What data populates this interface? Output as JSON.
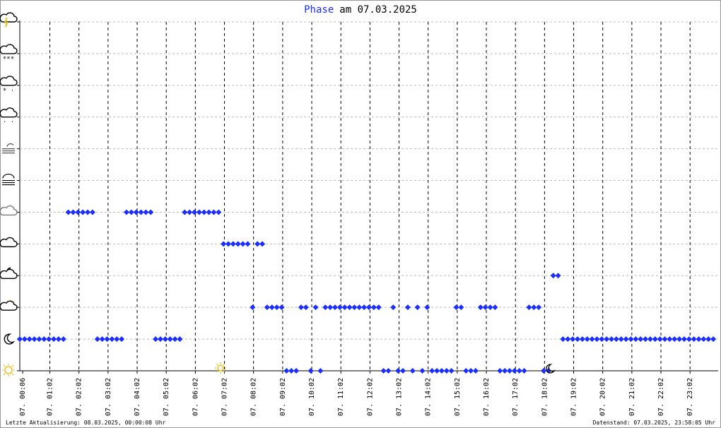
{
  "chart_data": {
    "type": "scatter",
    "title": "am 07.03.2025",
    "series": [
      {
        "name": "Phase",
        "color": "#1a2eff",
        "values": [
          1,
          1,
          1,
          1,
          1,
          1,
          1,
          1,
          1,
          1,
          5,
          5,
          5,
          5,
          5,
          5,
          1,
          1,
          1,
          1,
          1,
          1,
          5,
          5,
          5,
          5,
          5,
          5,
          1,
          1,
          1,
          1,
          1,
          1,
          5,
          5,
          5,
          5,
          5,
          5,
          5,
          5,
          4,
          4,
          4,
          4,
          4,
          4,
          2,
          4,
          4,
          2,
          2,
          2,
          2,
          0,
          0,
          0,
          2,
          2,
          0,
          2,
          0,
          2,
          2,
          2,
          2,
          2,
          2,
          2,
          2,
          2,
          2,
          2,
          2,
          0,
          0,
          2,
          0,
          0,
          2,
          0,
          2,
          0,
          2,
          0,
          0,
          0,
          0,
          0,
          2,
          2,
          0,
          0,
          0,
          2,
          2,
          2,
          2,
          0,
          0,
          0,
          0,
          0,
          0,
          2,
          2,
          2,
          0,
          0,
          3,
          3,
          1,
          1,
          1,
          1,
          1,
          1,
          1,
          1,
          1,
          1,
          1,
          1,
          1,
          1,
          1,
          1,
          1,
          1,
          1,
          1,
          1,
          1,
          1,
          1,
          1,
          1,
          1,
          1,
          1,
          1,
          1,
          1
        ]
      }
    ],
    "x": [
      "00:00",
      "00:10",
      "00:20",
      "00:30",
      "00:40",
      "00:50",
      "01:00",
      "01:10",
      "01:20",
      "01:30",
      "01:40",
      "01:50",
      "02:00",
      "02:10",
      "02:20",
      "02:30",
      "02:40",
      "02:50",
      "03:00",
      "03:10",
      "03:20",
      "03:30",
      "03:40",
      "03:50",
      "04:00",
      "04:10",
      "04:20",
      "04:30",
      "04:40",
      "04:50",
      "05:00",
      "05:10",
      "05:20",
      "05:30",
      "05:40",
      "05:50",
      "06:00",
      "06:10",
      "06:20",
      "06:30",
      "06:40",
      "06:50",
      "07:00",
      "07:10",
      "07:20",
      "07:30",
      "07:40",
      "07:50",
      "08:00",
      "08:10",
      "08:20",
      "08:30",
      "08:40",
      "08:50",
      "09:00",
      "09:10",
      "09:20",
      "09:30",
      "09:40",
      "09:50",
      "10:00",
      "10:10",
      "10:20",
      "10:30",
      "10:40",
      "10:50",
      "11:00",
      "11:10",
      "11:20",
      "11:30",
      "11:40",
      "11:50",
      "12:00",
      "12:10",
      "12:20",
      "12:30",
      "12:40",
      "12:50",
      "13:00",
      "13:10",
      "13:20",
      "13:30",
      "13:40",
      "13:50",
      "14:00",
      "14:10",
      "14:20",
      "14:30",
      "14:40",
      "14:50",
      "15:00",
      "15:10",
      "15:20",
      "15:30",
      "15:40",
      "15:50",
      "16:00",
      "16:10",
      "16:20",
      "16:30",
      "16:40",
      "16:50",
      "17:00",
      "17:10",
      "17:20",
      "17:30",
      "17:40",
      "17:50",
      "18:00",
      "18:10",
      "18:20",
      "18:30",
      "18:40",
      "18:50",
      "19:00",
      "19:10",
      "19:20",
      "19:30",
      "19:40",
      "19:50",
      "20:00",
      "20:10",
      "20:20",
      "20:30",
      "20:40",
      "20:50",
      "21:00",
      "21:10",
      "21:20",
      "21:30",
      "21:40",
      "21:50",
      "22:00",
      "22:10",
      "22:20",
      "22:30",
      "22:40",
      "22:50",
      "23:00",
      "23:10",
      "23:20",
      "23:30",
      "23:40",
      "23:50"
    ],
    "xlim": [
      "00:00",
      "24:00"
    ],
    "xticks": [
      {
        "value": "00:06",
        "label": "07. 00:06"
      },
      {
        "value": "01:02",
        "label": "07. 01:02"
      },
      {
        "value": "02:02",
        "label": "07. 02:02"
      },
      {
        "value": "03:02",
        "label": "07. 03:02"
      },
      {
        "value": "04:02",
        "label": "07. 04:02"
      },
      {
        "value": "05:02",
        "label": "07. 05:02"
      },
      {
        "value": "06:02",
        "label": "07. 06:02"
      },
      {
        "value": "07:02",
        "label": "07. 07:02"
      },
      {
        "value": "08:02",
        "label": "07. 08:02"
      },
      {
        "value": "09:02",
        "label": "07. 09:02"
      },
      {
        "value": "10:02",
        "label": "07. 10:02"
      },
      {
        "value": "11:02",
        "label": "07. 11:02"
      },
      {
        "value": "12:02",
        "label": "07. 12:02"
      },
      {
        "value": "13:02",
        "label": "07. 13:02"
      },
      {
        "value": "14:02",
        "label": "07. 14:02"
      },
      {
        "value": "15:02",
        "label": "07. 15:02"
      },
      {
        "value": "16:02",
        "label": "07. 16:02"
      },
      {
        "value": "17:02",
        "label": "07. 17:02"
      },
      {
        "value": "18:02",
        "label": "07. 18:02"
      },
      {
        "value": "19:02",
        "label": "07. 19:02"
      },
      {
        "value": "20:02",
        "label": "07. 20:02"
      },
      {
        "value": "21:02",
        "label": "07. 21:02"
      },
      {
        "value": "22:02",
        "label": "07. 22:02"
      },
      {
        "value": "23:02",
        "label": "07. 23:02"
      }
    ],
    "ylim": [
      0,
      11
    ],
    "yticks": [
      0,
      1,
      2,
      3,
      4,
      5,
      6,
      7,
      8,
      9,
      10,
      11
    ],
    "grid": true,
    "footer_left": "Letzte Aktualisierung: 08.03.2025, 00:00:08 Uhr",
    "footer_right": "Datenstand: 07.03.2025, 23:58:05 Uhr"
  }
}
